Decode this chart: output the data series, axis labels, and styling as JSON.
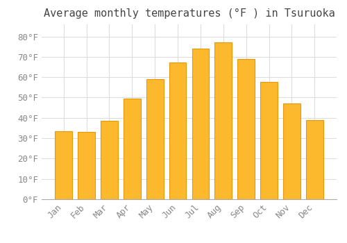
{
  "title": "Average monthly temperatures (°F ) in Tsuruoka",
  "months": [
    "Jan",
    "Feb",
    "Mar",
    "Apr",
    "May",
    "Jun",
    "Jul",
    "Aug",
    "Sep",
    "Oct",
    "Nov",
    "Dec"
  ],
  "values": [
    33.3,
    33.1,
    38.7,
    49.6,
    59.2,
    67.1,
    74.1,
    77.2,
    68.9,
    57.6,
    47.1,
    38.8
  ],
  "bar_color": "#FDB92E",
  "bar_edge_color": "#E8960A",
  "background_color": "#FFFFFF",
  "grid_color": "#DDDDDD",
  "ylim": [
    0,
    86
  ],
  "yticks": [
    0,
    10,
    20,
    30,
    40,
    50,
    60,
    70,
    80
  ],
  "title_fontsize": 11,
  "tick_fontsize": 9,
  "font_family": "monospace"
}
